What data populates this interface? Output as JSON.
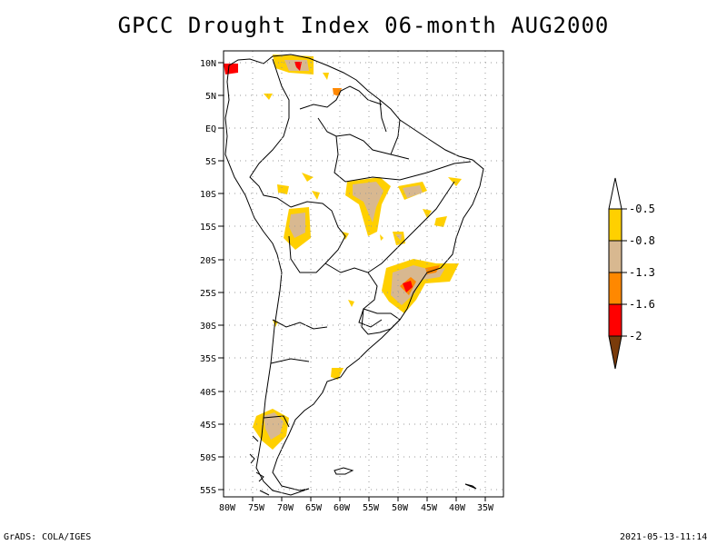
{
  "title": "GPCC Drought Index 06-month AUG2000",
  "footer": {
    "left": "GrADS: COLA/IGES",
    "right": "2021-05-13-11:14"
  },
  "map": {
    "lon_range": [
      -80,
      -30
    ],
    "lat_range": [
      -56,
      12
    ],
    "grid": true,
    "x_ticks": [
      "80W",
      "75W",
      "70W",
      "65W",
      "60W",
      "55W",
      "50W",
      "45W",
      "40W",
      "35W"
    ],
    "y_ticks": [
      "10N",
      "5N",
      "EQ",
      "5S",
      "10S",
      "15S",
      "20S",
      "25S",
      "30S",
      "35S",
      "40S",
      "45S",
      "50S",
      "55S"
    ]
  },
  "legend": {
    "labels": [
      "-0.5",
      "-0.8",
      "-1.3",
      "-1.6",
      "-2"
    ],
    "colors": {
      "top_arrow": "#ffffff",
      "c1": "#ffd000",
      "c2": "#d8b890",
      "c3": "#ff8800",
      "c4": "#ff0000",
      "bottom_arrow": "#7a3b0a"
    }
  }
}
